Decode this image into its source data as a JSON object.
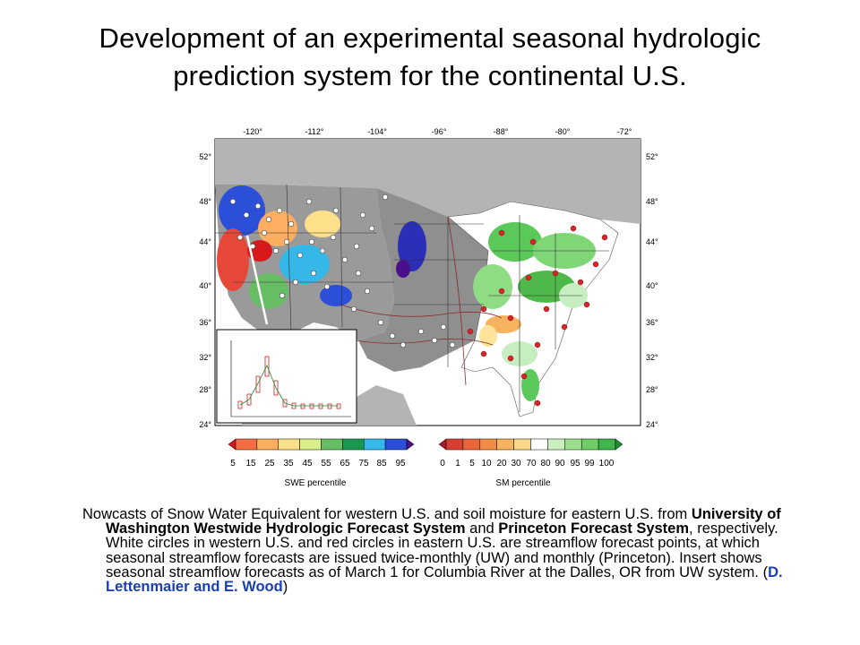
{
  "title": {
    "line1": "Development of an experimental seasonal hydrologic",
    "line2": "prediction system for the continental U.S."
  },
  "map": {
    "lon_labels": [
      "-120°",
      "-112°",
      "-104°",
      "-96°",
      "-88°",
      "-80°",
      "-72°"
    ],
    "lat_labels": [
      "52°",
      "48°",
      "44°",
      "40°",
      "36°",
      "32°",
      "28°",
      "24°"
    ],
    "swe_legend": {
      "title": "SWE percentile",
      "ticks": [
        "5",
        "15",
        "25",
        "35",
        "45",
        "55",
        "65",
        "75",
        "85",
        "95"
      ],
      "colors": [
        "#d7191c",
        "#f46d43",
        "#fdae61",
        "#fee08b",
        "#d9ef8b",
        "#66bd63",
        "#1a9850",
        "#35b8e8",
        "#2b4fd8",
        "#4b0f8c"
      ]
    },
    "sm_legend": {
      "title": "SM percentile",
      "ticks": [
        "0",
        "1",
        "5",
        "10",
        "20",
        "30",
        "70",
        "80",
        "90",
        "95",
        "99",
        "100"
      ],
      "colors": [
        "#b2182b",
        "#d6402f",
        "#e8663a",
        "#f28c45",
        "#f6b25c",
        "#fbd78a",
        "#ffffff",
        "#c9efbe",
        "#9be08f",
        "#6fcf66",
        "#3fb44a",
        "#1f8f2e"
      ]
    }
  },
  "caption": {
    "part1": "Nowcasts of Snow Water Equivalent for western U.S. and soil moisture for eastern U.S. from ",
    "uw": "University of Washington Westwide Hydrologic Forecast System",
    "and": " and ",
    "princeton": "Princeton Forecast System",
    "part2": ", respectively. White circles in western U.S. and red circles in eastern U.S. are streamflow forecast points, at which seasonal streamflow forecasts are issued twice-monthly (UW) and monthly (Princeton). Insert shows seasonal streamflow forecasts as of March 1 for Columbia River at the Dalles, OR from UW system. (",
    "credit": "D. Lettenmaier and E. Wood",
    "close": ")"
  }
}
